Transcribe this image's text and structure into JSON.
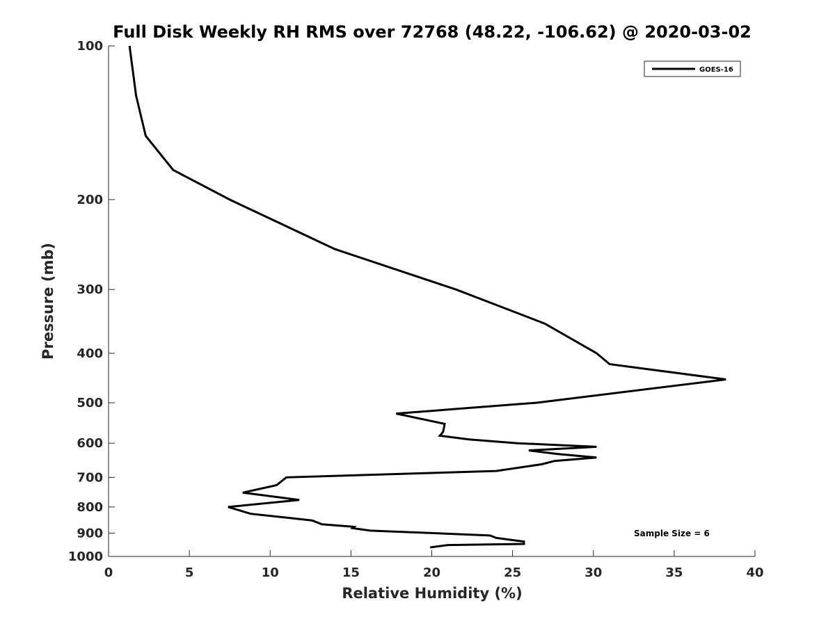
{
  "chart_data": {
    "type": "line",
    "title": "Full Disk Weekly RH RMS over 72768 (48.22, -106.62) @ 2020-03-02",
    "xlabel": "Relative Humidity (%)",
    "ylabel": "Pressure (mb)",
    "xlim": [
      0,
      40
    ],
    "ylim": [
      100,
      1000
    ],
    "yscale": "log",
    "yreversed": true,
    "x_ticks": [
      "0",
      "5",
      "10",
      "15",
      "20",
      "25",
      "30",
      "35",
      "40"
    ],
    "y_ticks": [
      "100",
      "200",
      "300",
      "400",
      "500",
      "600",
      "700",
      "800",
      "900",
      "1000"
    ],
    "grid": false,
    "legend_position": "top-right",
    "annotation": "Sample Size = 6",
    "series": [
      {
        "name": "GOES-16",
        "color": "#000000",
        "points": [
          [
            1.3,
            100
          ],
          [
            1.7,
            125
          ],
          [
            2.3,
            150
          ],
          [
            4.0,
            175
          ],
          [
            7.5,
            200
          ],
          [
            14.0,
            250
          ],
          [
            21.5,
            300
          ],
          [
            27.0,
            350
          ],
          [
            30.2,
            400
          ],
          [
            31.0,
            420
          ],
          [
            38.2,
            450
          ],
          [
            26.5,
            500
          ],
          [
            17.8,
            525
          ],
          [
            20.8,
            550
          ],
          [
            20.7,
            570
          ],
          [
            20.5,
            580
          ],
          [
            22.3,
            590
          ],
          [
            25.3,
            600
          ],
          [
            30.2,
            610
          ],
          [
            26.0,
            620
          ],
          [
            27.8,
            630
          ],
          [
            30.2,
            640
          ],
          [
            27.6,
            650
          ],
          [
            26.8,
            660
          ],
          [
            24.0,
            680
          ],
          [
            11.0,
            700
          ],
          [
            10.4,
            725
          ],
          [
            8.3,
            750
          ],
          [
            11.8,
            775
          ],
          [
            7.4,
            800
          ],
          [
            8.8,
            825
          ],
          [
            12.6,
            850
          ],
          [
            13.2,
            865
          ],
          [
            15.2,
            875
          ],
          [
            15.1,
            880
          ],
          [
            16.2,
            890
          ],
          [
            20.0,
            900
          ],
          [
            23.6,
            910
          ],
          [
            24.0,
            920
          ],
          [
            25.7,
            935
          ],
          [
            25.7,
            945
          ],
          [
            21.0,
            950
          ],
          [
            19.9,
            960
          ]
        ]
      }
    ]
  }
}
